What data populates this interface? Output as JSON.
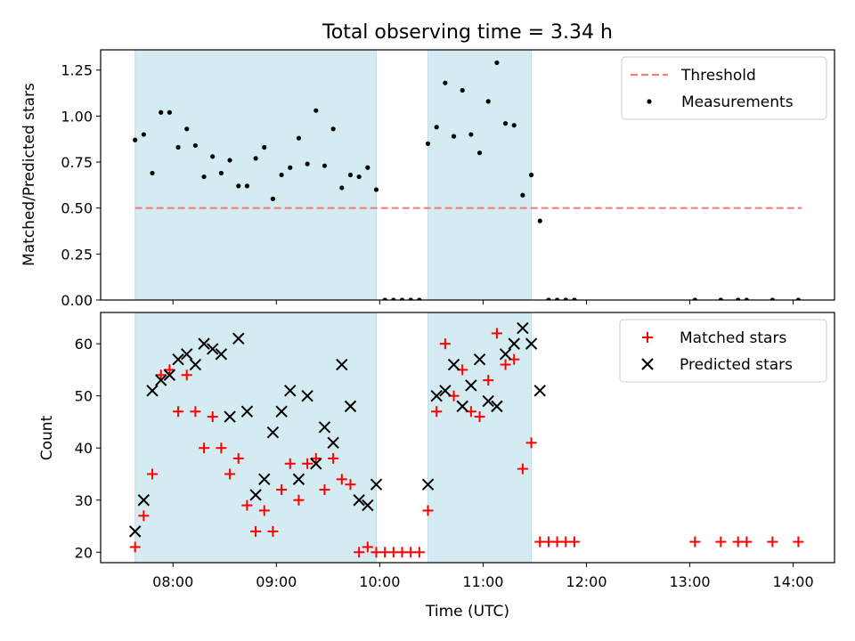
{
  "chart_data": [
    {
      "type": "scatter",
      "title": "Total observing time = 3.34 h",
      "ylabel": "Matched/Predicted stars",
      "xlim_hours": [
        7.3,
        14.4
      ],
      "ylim": [
        0,
        1.36
      ],
      "yticks": [
        "0.00",
        "0.25",
        "0.50",
        "0.75",
        "1.00",
        "1.25"
      ],
      "yticks_values": [
        0,
        0.25,
        0.5,
        0.75,
        1.0,
        1.25
      ],
      "shaded_spans": [
        [
          "07:38",
          "09:58"
        ],
        [
          "10:28",
          "11:28"
        ]
      ],
      "threshold": {
        "name": "Threshold",
        "value": 0.5,
        "x_range": [
          "07:38",
          "14:05"
        ],
        "color": "#f08080"
      },
      "legend": {
        "position": "top-right",
        "entries": [
          "Threshold",
          "Measurements"
        ]
      },
      "series": [
        {
          "name": "Measurements",
          "color": "#000000",
          "points": [
            [
              "07:38",
              0.87
            ],
            [
              "07:43",
              0.9
            ],
            [
              "07:48",
              0.69
            ],
            [
              "07:53",
              1.02
            ],
            [
              "07:58",
              1.02
            ],
            [
              "08:03",
              0.83
            ],
            [
              "08:08",
              0.93
            ],
            [
              "08:13",
              0.84
            ],
            [
              "08:18",
              0.67
            ],
            [
              "08:23",
              0.78
            ],
            [
              "08:28",
              0.69
            ],
            [
              "08:33",
              0.76
            ],
            [
              "08:38",
              0.62
            ],
            [
              "08:43",
              0.62
            ],
            [
              "08:48",
              0.77
            ],
            [
              "08:53",
              0.83
            ],
            [
              "08:58",
              0.55
            ],
            [
              "09:03",
              0.68
            ],
            [
              "09:08",
              0.72
            ],
            [
              "09:13",
              0.88
            ],
            [
              "09:18",
              0.74
            ],
            [
              "09:23",
              1.03
            ],
            [
              "09:28",
              0.73
            ],
            [
              "09:33",
              0.93
            ],
            [
              "09:38",
              0.61
            ],
            [
              "09:43",
              0.68
            ],
            [
              "09:48",
              0.67
            ],
            [
              "09:53",
              0.72
            ],
            [
              "09:58",
              0.6
            ],
            [
              "10:03",
              0.0
            ],
            [
              "10:08",
              0.0
            ],
            [
              "10:13",
              0.0
            ],
            [
              "10:18",
              0.0
            ],
            [
              "10:23",
              0.0
            ],
            [
              "10:28",
              0.85
            ],
            [
              "10:33",
              0.94
            ],
            [
              "10:38",
              1.18
            ],
            [
              "10:43",
              0.89
            ],
            [
              "10:48",
              1.14
            ],
            [
              "10:53",
              0.9
            ],
            [
              "10:58",
              0.8
            ],
            [
              "11:03",
              1.08
            ],
            [
              "11:08",
              1.29
            ],
            [
              "11:13",
              0.96
            ],
            [
              "11:18",
              0.95
            ],
            [
              "11:23",
              0.57
            ],
            [
              "11:28",
              0.68
            ],
            [
              "11:33",
              0.43
            ],
            [
              "11:38",
              0.0
            ],
            [
              "11:43",
              0.0
            ],
            [
              "11:48",
              0.0
            ],
            [
              "11:53",
              0.0
            ],
            [
              "13:03",
              0.0
            ],
            [
              "13:18",
              0.0
            ],
            [
              "13:28",
              0.0
            ],
            [
              "13:33",
              0.0
            ],
            [
              "13:48",
              0.0
            ],
            [
              "14:03",
              0.0
            ]
          ]
        }
      ]
    },
    {
      "type": "scatter",
      "xlabel": "Time (UTC)",
      "ylabel": "Count",
      "xlim_hours": [
        7.3,
        14.4
      ],
      "ylim": [
        18,
        66
      ],
      "yticks": [
        "20",
        "30",
        "40",
        "50",
        "60"
      ],
      "yticks_values": [
        20,
        30,
        40,
        50,
        60
      ],
      "xticks": [
        "08:00",
        "09:00",
        "10:00",
        "11:00",
        "12:00",
        "13:00",
        "14:00"
      ],
      "xticks_hours": [
        8,
        9,
        10,
        11,
        12,
        13,
        14
      ],
      "shaded_spans": [
        [
          "07:38",
          "09:58"
        ],
        [
          "10:28",
          "11:28"
        ]
      ],
      "legend": {
        "position": "top-right",
        "entries": [
          "Matched stars",
          "Predicted stars"
        ]
      },
      "series": [
        {
          "name": "Matched stars",
          "marker": "plus",
          "color": "#ff0000",
          "points": [
            [
              "07:38",
              21
            ],
            [
              "07:43",
              27
            ],
            [
              "07:48",
              35
            ],
            [
              "07:53",
              54
            ],
            [
              "07:58",
              55
            ],
            [
              "08:03",
              47
            ],
            [
              "08:08",
              54
            ],
            [
              "08:13",
              47
            ],
            [
              "08:18",
              40
            ],
            [
              "08:23",
              46
            ],
            [
              "08:28",
              40
            ],
            [
              "08:33",
              35
            ],
            [
              "08:38",
              38
            ],
            [
              "08:43",
              29
            ],
            [
              "08:48",
              24
            ],
            [
              "08:53",
              28
            ],
            [
              "08:58",
              24
            ],
            [
              "09:03",
              32
            ],
            [
              "09:08",
              37
            ],
            [
              "09:13",
              30
            ],
            [
              "09:18",
              37
            ],
            [
              "09:23",
              38
            ],
            [
              "09:28",
              32
            ],
            [
              "09:33",
              38
            ],
            [
              "09:38",
              34
            ],
            [
              "09:43",
              33
            ],
            [
              "09:48",
              20
            ],
            [
              "09:53",
              21
            ],
            [
              "09:58",
              20
            ],
            [
              "10:03",
              20
            ],
            [
              "10:08",
              20
            ],
            [
              "10:13",
              20
            ],
            [
              "10:18",
              20
            ],
            [
              "10:23",
              20
            ],
            [
              "10:28",
              28
            ],
            [
              "10:33",
              47
            ],
            [
              "10:38",
              60
            ],
            [
              "10:43",
              50
            ],
            [
              "10:48",
              55
            ],
            [
              "10:53",
              47
            ],
            [
              "10:58",
              46
            ],
            [
              "11:03",
              53
            ],
            [
              "11:08",
              62
            ],
            [
              "11:13",
              56
            ],
            [
              "11:18",
              57
            ],
            [
              "11:23",
              36
            ],
            [
              "11:28",
              41
            ],
            [
              "11:33",
              22
            ],
            [
              "11:38",
              22
            ],
            [
              "11:43",
              22
            ],
            [
              "11:48",
              22
            ],
            [
              "11:53",
              22
            ],
            [
              "13:03",
              22
            ],
            [
              "13:18",
              22
            ],
            [
              "13:28",
              22
            ],
            [
              "13:33",
              22
            ],
            [
              "13:48",
              22
            ],
            [
              "14:03",
              22
            ]
          ]
        },
        {
          "name": "Predicted stars",
          "marker": "x",
          "color": "#000000",
          "points": [
            [
              "07:38",
              24
            ],
            [
              "07:43",
              30
            ],
            [
              "07:48",
              51
            ],
            [
              "07:53",
              53
            ],
            [
              "07:58",
              54
            ],
            [
              "08:03",
              57
            ],
            [
              "08:08",
              58
            ],
            [
              "08:13",
              56
            ],
            [
              "08:18",
              60
            ],
            [
              "08:23",
              59
            ],
            [
              "08:28",
              58
            ],
            [
              "08:33",
              46
            ],
            [
              "08:38",
              61
            ],
            [
              "08:43",
              47
            ],
            [
              "08:48",
              31
            ],
            [
              "08:53",
              34
            ],
            [
              "08:58",
              43
            ],
            [
              "09:03",
              47
            ],
            [
              "09:08",
              51
            ],
            [
              "09:13",
              34
            ],
            [
              "09:18",
              50
            ],
            [
              "09:23",
              37
            ],
            [
              "09:28",
              44
            ],
            [
              "09:33",
              41
            ],
            [
              "09:38",
              56
            ],
            [
              "09:43",
              48
            ],
            [
              "09:48",
              30
            ],
            [
              "09:53",
              29
            ],
            [
              "09:58",
              33
            ],
            [
              "10:28",
              33
            ],
            [
              "10:33",
              50
            ],
            [
              "10:38",
              51
            ],
            [
              "10:43",
              56
            ],
            [
              "10:48",
              48
            ],
            [
              "10:53",
              52
            ],
            [
              "10:58",
              57
            ],
            [
              "11:03",
              49
            ],
            [
              "11:08",
              48
            ],
            [
              "11:13",
              58
            ],
            [
              "11:18",
              60
            ],
            [
              "11:23",
              63
            ],
            [
              "11:28",
              60
            ],
            [
              "11:33",
              51
            ]
          ]
        }
      ]
    }
  ]
}
